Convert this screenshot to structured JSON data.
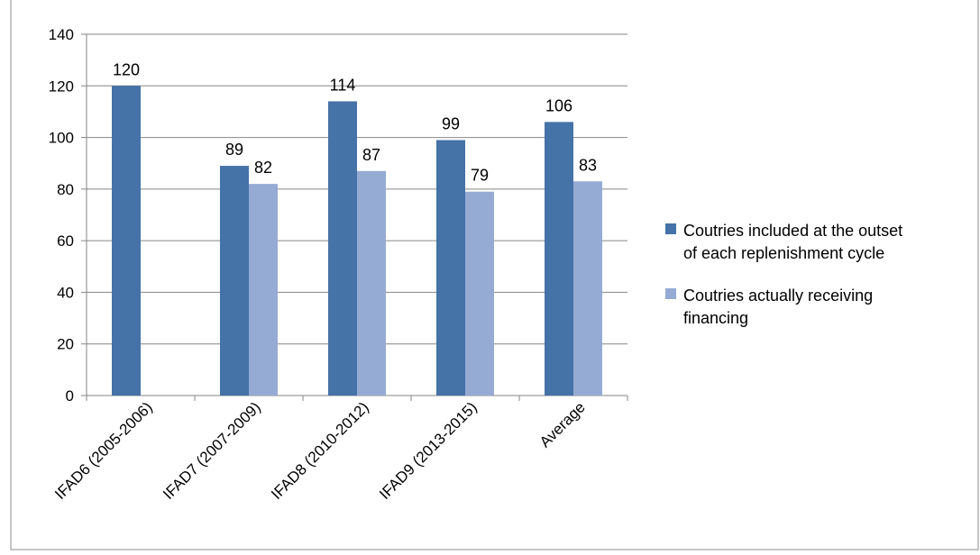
{
  "chart_data": {
    "type": "bar",
    "title": "",
    "xlabel": "",
    "ylabel": "",
    "categories": [
      "IFAD6 (2005-2006)",
      "IFAD7 (2007-2009)",
      "IFAD8 (2010-2012)",
      "IFAD9 (2013-2015)",
      "Average"
    ],
    "series": [
      {
        "name": "Coutries included at the outset of each replenishment cycle",
        "legend_lines": [
          "Coutries included at the outset",
          "of each replenishment cycle"
        ],
        "color": "#4572A7",
        "values": [
          120,
          89,
          114,
          99,
          106
        ]
      },
      {
        "name": "Coutries actually receiving financing",
        "legend_lines": [
          "Coutries actually receiving",
          "financing"
        ],
        "color": "#95ABD4",
        "values": [
          null,
          82,
          87,
          79,
          83
        ]
      }
    ],
    "ylim": [
      0,
      140
    ],
    "yticks": [
      0,
      20,
      40,
      60,
      80,
      100,
      120,
      140
    ],
    "grid": true,
    "data_labels": true,
    "legend_position": "right"
  }
}
